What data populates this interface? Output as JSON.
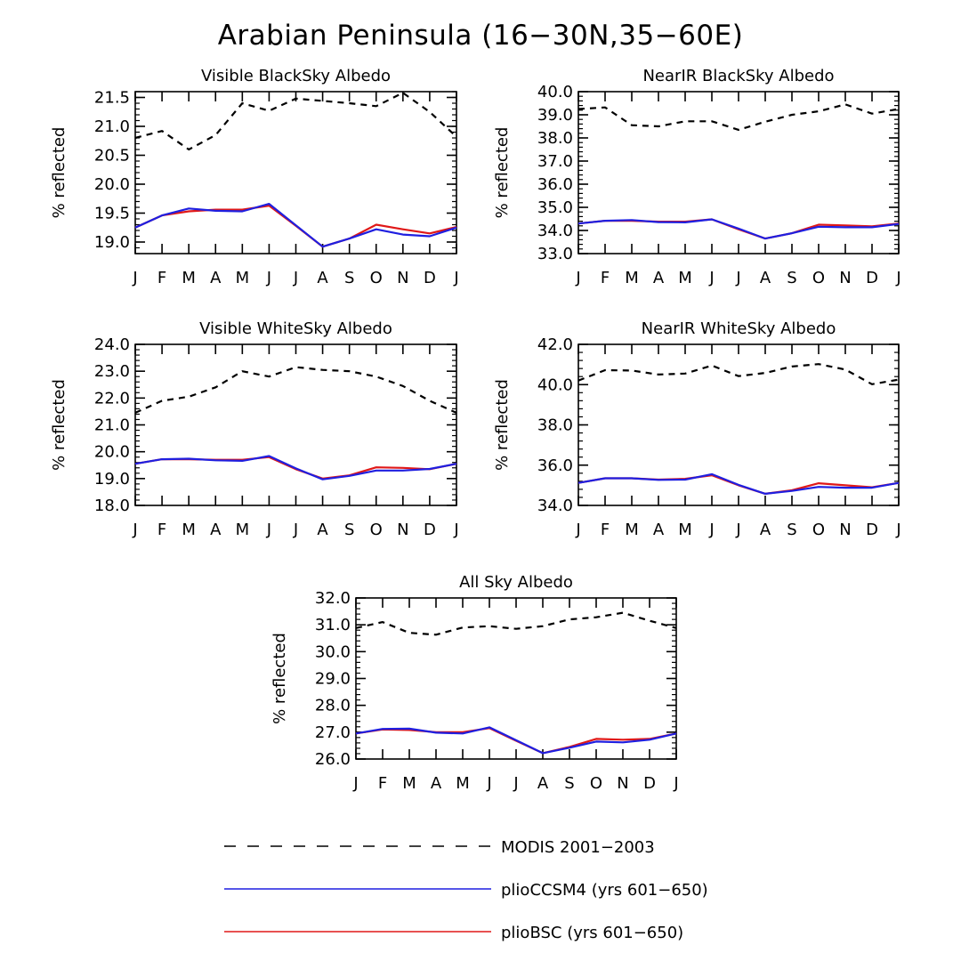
{
  "figure_title": "Arabian Peninsula (16−30N,35−60E)",
  "colors": {
    "modis": "#000000",
    "ccsm4": "#1f1fe0",
    "bsc": "#e01818"
  },
  "legend": {
    "modis": "MODIS 2001−2003",
    "ccsm4": "plioCCSM4 (yrs 601−650)",
    "bsc": "plioBSC (yrs 601−650)"
  },
  "chart_data": [
    {
      "type": "line",
      "title": "Visible BlackSky Albedo",
      "ylabel": "% reflected",
      "categories": [
        "J",
        "F",
        "M",
        "A",
        "M",
        "J",
        "J",
        "A",
        "S",
        "O",
        "N",
        "D",
        "J"
      ],
      "ylim": [
        18.8,
        21.6
      ],
      "yticks": [
        "19.0",
        "19.5",
        "20.0",
        "20.5",
        "21.0",
        "21.5"
      ],
      "series": [
        {
          "name": "MODIS 2001−2003",
          "values": [
            20.8,
            20.92,
            20.6,
            20.85,
            21.4,
            21.27,
            21.48,
            21.44,
            21.4,
            21.35,
            21.58,
            21.25,
            20.82
          ]
        },
        {
          "name": "plioBSC (yrs 601−650)",
          "values": [
            19.25,
            19.46,
            19.53,
            19.56,
            19.56,
            19.63,
            19.28,
            18.92,
            19.06,
            19.3,
            19.22,
            19.15,
            19.26
          ]
        },
        {
          "name": "plioCCSM4 (yrs 601−650)",
          "values": [
            19.25,
            19.46,
            19.58,
            19.54,
            19.53,
            19.66,
            19.29,
            18.92,
            19.06,
            19.22,
            19.13,
            19.1,
            19.25
          ]
        }
      ]
    },
    {
      "type": "line",
      "title": "NearIR BlackSky Albedo",
      "ylabel": "% reflected",
      "categories": [
        "J",
        "F",
        "M",
        "A",
        "M",
        "J",
        "J",
        "A",
        "S",
        "O",
        "N",
        "D",
        "J"
      ],
      "ylim": [
        33.0,
        40.0
      ],
      "yticks": [
        "33.0",
        "34.0",
        "35.0",
        "36.0",
        "37.0",
        "38.0",
        "39.0",
        "40.0"
      ],
      "series": [
        {
          "name": "MODIS 2001−2003",
          "values": [
            39.25,
            39.32,
            38.55,
            38.5,
            38.72,
            38.72,
            38.35,
            38.7,
            39.0,
            39.15,
            39.45,
            39.05,
            39.25
          ]
        },
        {
          "name": "plioBSC (yrs 601−650)",
          "values": [
            34.3,
            34.42,
            34.42,
            34.38,
            34.38,
            34.48,
            34.05,
            33.65,
            33.88,
            34.25,
            34.22,
            34.18,
            34.3
          ]
        },
        {
          "name": "plioCCSM4 (yrs 601−650)",
          "values": [
            34.3,
            34.42,
            34.45,
            34.36,
            34.35,
            34.48,
            34.08,
            33.65,
            33.88,
            34.16,
            34.14,
            34.14,
            34.28
          ]
        }
      ]
    },
    {
      "type": "line",
      "title": "Visible WhiteSky Albedo",
      "ylabel": "% reflected",
      "categories": [
        "J",
        "F",
        "M",
        "A",
        "M",
        "J",
        "J",
        "A",
        "S",
        "O",
        "N",
        "D",
        "J"
      ],
      "ylim": [
        18.0,
        24.0
      ],
      "yticks": [
        "18.0",
        "19.0",
        "20.0",
        "21.0",
        "22.0",
        "23.0",
        "24.0"
      ],
      "series": [
        {
          "name": "MODIS 2001−2003",
          "values": [
            21.45,
            21.9,
            22.05,
            22.4,
            23.0,
            22.8,
            23.15,
            23.05,
            23.0,
            22.8,
            22.45,
            21.9,
            21.45
          ]
        },
        {
          "name": "plioBSC (yrs 601−650)",
          "values": [
            19.55,
            19.72,
            19.72,
            19.7,
            19.7,
            19.8,
            19.35,
            19.0,
            19.12,
            19.42,
            19.4,
            19.35,
            19.55
          ]
        },
        {
          "name": "plioCCSM4 (yrs 601−650)",
          "values": [
            19.55,
            19.72,
            19.74,
            19.68,
            19.66,
            19.84,
            19.38,
            18.97,
            19.1,
            19.3,
            19.3,
            19.36,
            19.55
          ]
        }
      ]
    },
    {
      "type": "line",
      "title": "NearIR WhiteSky Albedo",
      "ylabel": "% reflected",
      "categories": [
        "J",
        "F",
        "M",
        "A",
        "M",
        "J",
        "J",
        "A",
        "S",
        "O",
        "N",
        "D",
        "J"
      ],
      "ylim": [
        34.0,
        42.0
      ],
      "yticks": [
        "34.0",
        "36.0",
        "38.0",
        "40.0",
        "42.0"
      ],
      "series": [
        {
          "name": "MODIS 2001−2003",
          "values": [
            40.2,
            40.72,
            40.7,
            40.5,
            40.55,
            40.95,
            40.42,
            40.58,
            40.9,
            41.02,
            40.75,
            40.02,
            40.25
          ]
        },
        {
          "name": "plioBSC (yrs 601−650)",
          "values": [
            35.12,
            35.35,
            35.35,
            35.28,
            35.32,
            35.5,
            35.0,
            34.58,
            34.75,
            35.1,
            35.0,
            34.9,
            35.12
          ]
        },
        {
          "name": "plioCCSM4 (yrs 601−650)",
          "values": [
            35.12,
            35.35,
            35.35,
            35.27,
            35.28,
            35.55,
            35.02,
            34.58,
            34.72,
            34.92,
            34.88,
            34.88,
            35.12
          ]
        }
      ]
    },
    {
      "type": "line",
      "title": "All Sky Albedo",
      "ylabel": "% reflected",
      "categories": [
        "J",
        "F",
        "M",
        "A",
        "M",
        "J",
        "J",
        "A",
        "S",
        "O",
        "N",
        "D",
        "J"
      ],
      "ylim": [
        26.0,
        32.0
      ],
      "yticks": [
        "26.0",
        "27.0",
        "28.0",
        "29.0",
        "30.0",
        "31.0",
        "32.0"
      ],
      "series": [
        {
          "name": "MODIS 2001−2003",
          "values": [
            30.88,
            31.1,
            30.7,
            30.63,
            30.9,
            30.95,
            30.85,
            30.95,
            31.2,
            31.28,
            31.45,
            31.15,
            30.88
          ]
        },
        {
          "name": "plioBSC (yrs 601−650)",
          "values": [
            26.95,
            27.1,
            27.08,
            27.0,
            27.0,
            27.15,
            26.68,
            26.22,
            26.45,
            26.75,
            26.72,
            26.75,
            26.95
          ]
        },
        {
          "name": "plioCCSM4 (yrs 601−650)",
          "values": [
            26.95,
            27.12,
            27.13,
            26.98,
            26.95,
            27.18,
            26.7,
            26.22,
            26.42,
            26.65,
            26.62,
            26.72,
            26.95
          ]
        }
      ]
    }
  ]
}
